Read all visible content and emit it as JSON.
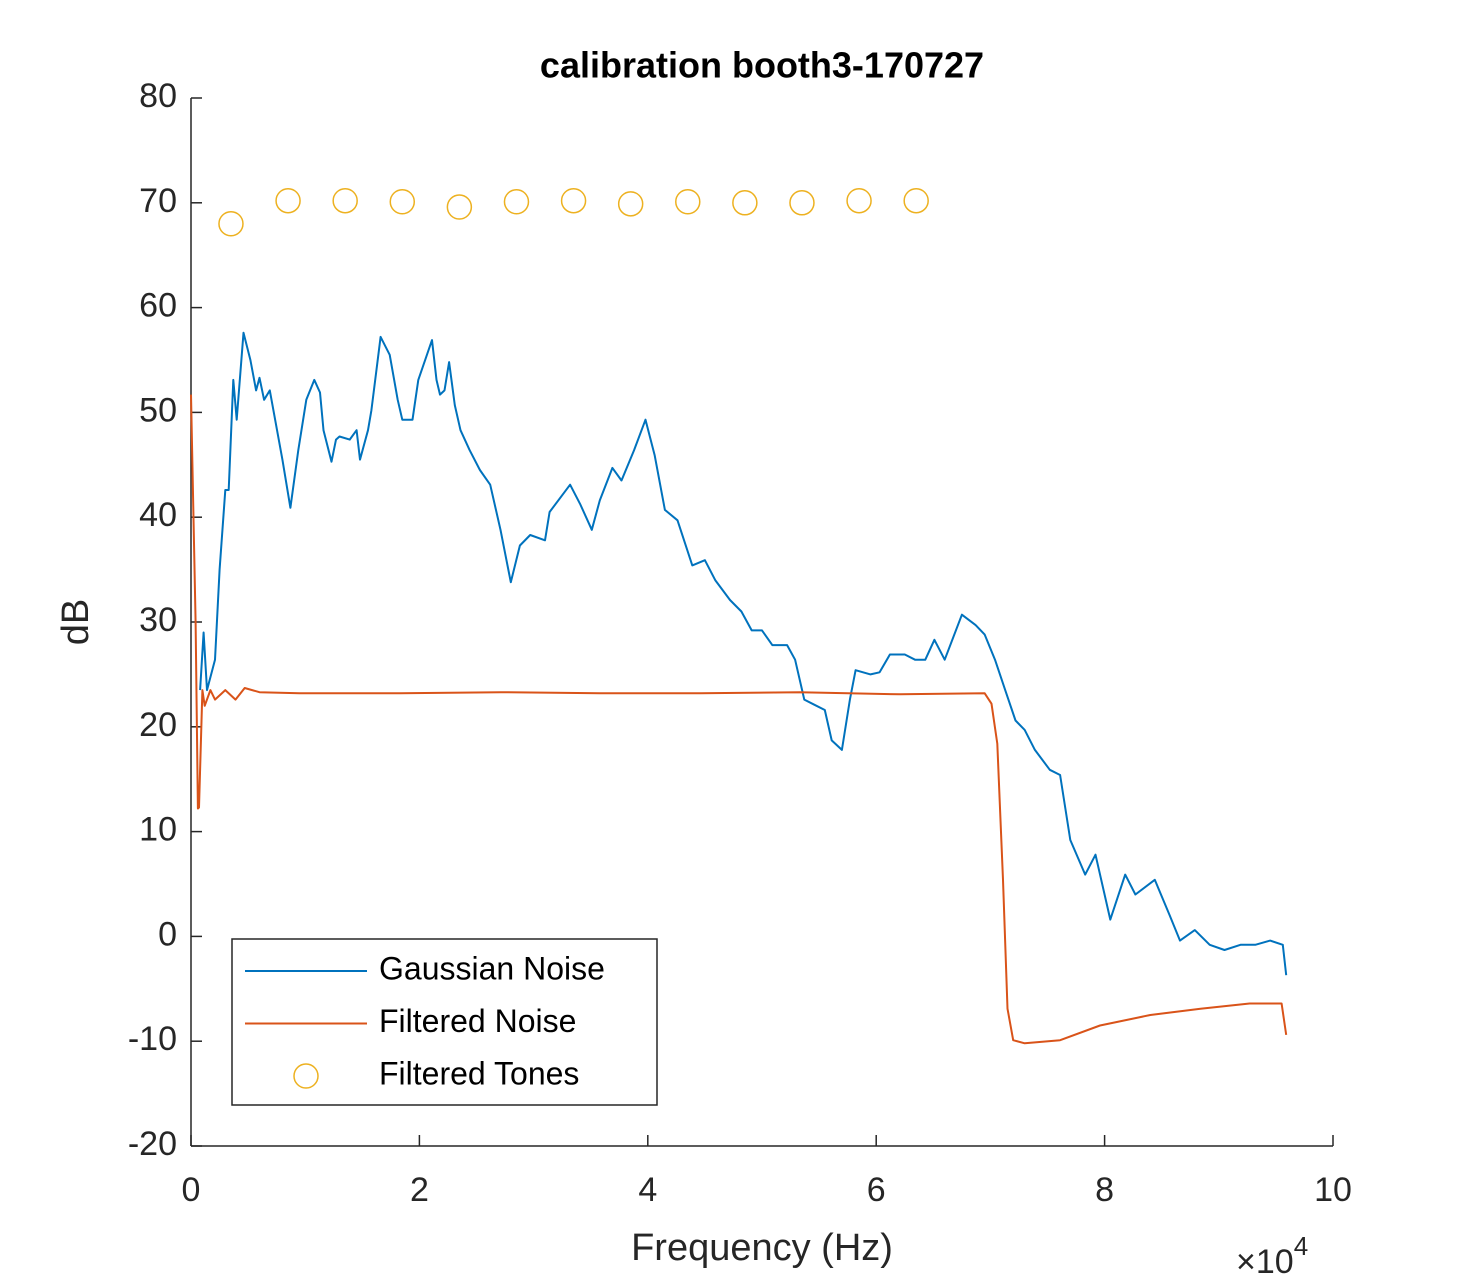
{
  "chart_data": {
    "type": "line",
    "title": "calibration booth3-170727",
    "x_label": "Frequency (Hz)",
    "y_label": "dB",
    "x_multiplier": {
      "base": "×10",
      "exponent": "4"
    },
    "xlim": [
      0,
      10
    ],
    "xticks": [
      0,
      2,
      4,
      6,
      8,
      10
    ],
    "ylim": [
      -20,
      80
    ],
    "yticks": [
      -20,
      -10,
      0,
      10,
      20,
      30,
      40,
      50,
      60,
      70,
      80
    ],
    "grid": false,
    "legend_position": "southwest",
    "series": [
      {
        "name": "Gaussian Noise",
        "color": "#0072bd",
        "style": "line",
        "x": [
          0.08,
          0.11,
          0.14,
          0.21,
          0.25,
          0.3,
          0.33,
          0.37,
          0.4,
          0.46,
          0.52,
          0.57,
          0.6,
          0.64,
          0.69,
          0.8,
          0.87,
          0.94,
          1.01,
          1.08,
          1.13,
          1.16,
          1.23,
          1.27,
          1.3,
          1.39,
          1.45,
          1.48,
          1.55,
          1.58,
          1.66,
          1.74,
          1.81,
          1.85,
          1.94,
          1.99,
          2.11,
          2.15,
          2.18,
          2.22,
          2.26,
          2.31,
          2.36,
          2.44,
          2.53,
          2.62,
          2.71,
          2.8,
          2.88,
          2.97,
          3.1,
          3.14,
          3.32,
          3.41,
          3.51,
          3.58,
          3.69,
          3.77,
          3.88,
          3.98,
          4.06,
          4.15,
          4.26,
          4.39,
          4.5,
          4.59,
          4.72,
          4.82,
          4.91,
          5.0,
          5.09,
          5.22,
          5.29,
          5.37,
          5.46,
          5.55,
          5.61,
          5.7,
          5.77,
          5.82,
          5.95,
          6.03,
          6.12,
          6.25,
          6.34,
          6.43,
          6.51,
          6.6,
          6.75,
          6.87,
          6.95,
          7.04,
          7.13,
          7.22,
          7.3,
          7.39,
          7.52,
          7.61,
          7.7,
          7.83,
          7.92,
          8.05,
          8.18,
          8.27,
          8.44,
          8.57,
          8.66,
          8.79,
          8.92,
          9.05,
          9.19,
          9.32,
          9.45,
          9.56,
          9.59
        ],
        "values": [
          23.5,
          29.0,
          23.5,
          26.4,
          35.0,
          42.6,
          42.6,
          53.1,
          49.3,
          57.6,
          55.0,
          52.1,
          53.3,
          51.2,
          52.1,
          45.5,
          40.9,
          46.4,
          51.2,
          53.1,
          51.9,
          48.3,
          45.3,
          47.4,
          47.7,
          47.4,
          48.3,
          45.5,
          48.3,
          50.2,
          57.2,
          55.5,
          51.2,
          49.3,
          49.3,
          53.1,
          56.9,
          53.1,
          51.7,
          52.1,
          54.8,
          50.7,
          48.3,
          46.4,
          44.5,
          43.1,
          38.8,
          33.8,
          37.3,
          38.3,
          37.8,
          40.5,
          43.1,
          41.2,
          38.8,
          41.6,
          44.7,
          43.5,
          46.4,
          49.3,
          45.9,
          40.7,
          39.7,
          35.4,
          35.9,
          34.0,
          32.1,
          31.0,
          29.2,
          29.2,
          27.8,
          27.8,
          26.4,
          22.6,
          22.1,
          21.6,
          18.7,
          17.8,
          22.6,
          25.4,
          25.0,
          25.2,
          26.9,
          26.9,
          26.4,
          26.4,
          28.3,
          26.4,
          30.7,
          29.7,
          28.8,
          26.4,
          23.5,
          20.6,
          19.7,
          17.8,
          15.9,
          15.4,
          9.2,
          5.9,
          7.8,
          1.6,
          5.9,
          4.0,
          5.4,
          2.0,
          -0.4,
          0.6,
          -0.8,
          -1.3,
          -0.8,
          -0.8,
          -0.4,
          -0.8,
          -3.7
        ]
      },
      {
        "name": "Filtered Noise",
        "color": "#d95319",
        "style": "line",
        "x": [
          0.0,
          0.04,
          0.06,
          0.07,
          0.1,
          0.12,
          0.17,
          0.21,
          0.3,
          0.39,
          0.47,
          0.6,
          0.95,
          1.83,
          2.71,
          3.58,
          4.46,
          5.33,
          6.21,
          6.95,
          7.01,
          7.06,
          7.11,
          7.15,
          7.2,
          7.3,
          7.61,
          7.96,
          8.4,
          8.84,
          9.27,
          9.55,
          9.59
        ],
        "values": [
          51.7,
          30,
          12.2,
          12.3,
          23.5,
          22.0,
          23.5,
          22.6,
          23.5,
          22.6,
          23.7,
          23.3,
          23.2,
          23.2,
          23.3,
          23.2,
          23.2,
          23.3,
          23.1,
          23.2,
          22.2,
          18.4,
          5.4,
          -6.9,
          -9.9,
          -10.2,
          -9.9,
          -8.5,
          -7.5,
          -6.9,
          -6.4,
          -6.4,
          -9.4
        ]
      },
      {
        "name": "Filtered Tones",
        "color": "#edb120",
        "style": "marker",
        "x": [
          0.35,
          0.85,
          1.35,
          1.85,
          2.35,
          2.85,
          3.35,
          3.85,
          4.35,
          4.85,
          5.35,
          5.85,
          6.35
        ],
        "values": [
          68.0,
          70.2,
          70.2,
          70.1,
          69.6,
          70.1,
          70.2,
          69.9,
          70.1,
          70.0,
          70.0,
          70.2,
          70.2
        ]
      }
    ]
  }
}
